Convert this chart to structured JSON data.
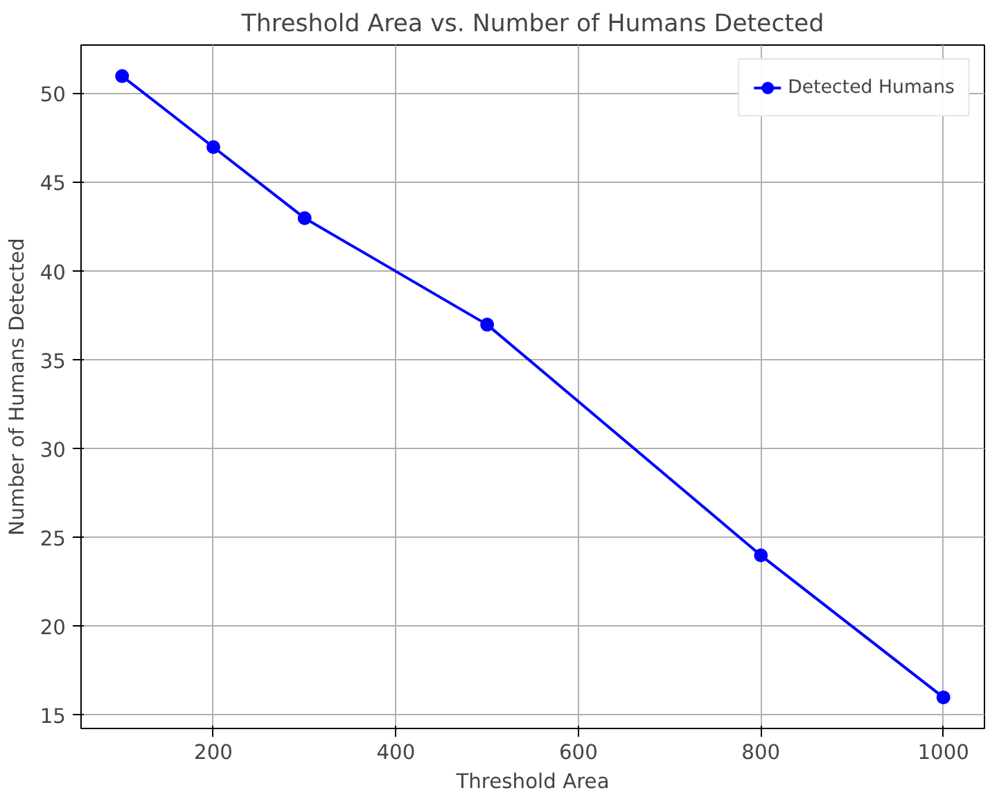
{
  "chart_data": {
    "type": "line",
    "title": "Threshold Area vs. Number of Humans Detected",
    "xlabel": "Threshold Area",
    "ylabel": "Number of Humans Detected",
    "x": [
      100,
      200,
      300,
      500,
      800,
      1000
    ],
    "series": [
      {
        "name": "Detected Humans",
        "color": "#0000ff",
        "values": [
          51,
          47,
          43,
          37,
          24,
          16
        ]
      }
    ],
    "xlim": [
      55,
      1045
    ],
    "ylim": [
      14.25,
      52.75
    ],
    "xticks": [
      200,
      400,
      600,
      800,
      1000
    ],
    "yticks": [
      15,
      20,
      25,
      30,
      35,
      40,
      45,
      50
    ],
    "grid": true,
    "legend": "top right",
    "marker": "circle",
    "line_style": "solid"
  }
}
